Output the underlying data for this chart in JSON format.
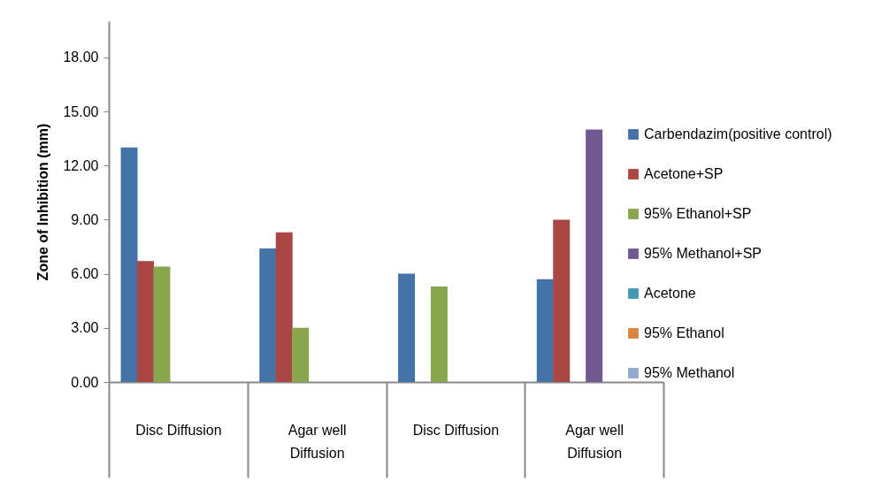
{
  "chart_data": {
    "type": "bar",
    "ylabel": "Zone of Inhibition (mm)",
    "categories": [
      "Disc Diffusion",
      "Agar well Diffusion",
      "Disc Diffusion",
      "Agar well Diffusion"
    ],
    "ylim": [
      0,
      20
    ],
    "yticks": [
      {
        "value": 0,
        "label": "0.00"
      },
      {
        "value": 3,
        "label": "3.00"
      },
      {
        "value": 6,
        "label": "6.00"
      },
      {
        "value": 9,
        "label": "9.00"
      },
      {
        "value": 12,
        "label": "12.00"
      },
      {
        "value": 15,
        "label": "15.00"
      },
      {
        "value": 18,
        "label": "18.00"
      }
    ],
    "legend": "right",
    "grid": false,
    "series": [
      {
        "name": "Carbendazim(positive control)",
        "color": "#4572a7",
        "values": [
          13.0,
          7.4,
          6.0,
          5.7
        ]
      },
      {
        "name": "Acetone+SP",
        "color": "#aa4643",
        "values": [
          6.7,
          8.3,
          null,
          9.0
        ]
      },
      {
        "name": "95% Ethanol+SP",
        "color": "#89a54e",
        "values": [
          6.4,
          3.0,
          5.3,
          null
        ]
      },
      {
        "name": "95% Methanol+SP",
        "color": "#71588f",
        "values": [
          null,
          null,
          null,
          14.0
        ]
      },
      {
        "name": "Acetone",
        "color": "#4198af",
        "values": [
          null,
          null,
          null,
          null
        ]
      },
      {
        "name": "95% Ethanol",
        "color": "#db843d",
        "values": [
          null,
          null,
          null,
          null
        ]
      },
      {
        "name": "95% Methanol",
        "color": "#93a9cf",
        "values": [
          null,
          null,
          null,
          null
        ]
      }
    ]
  }
}
